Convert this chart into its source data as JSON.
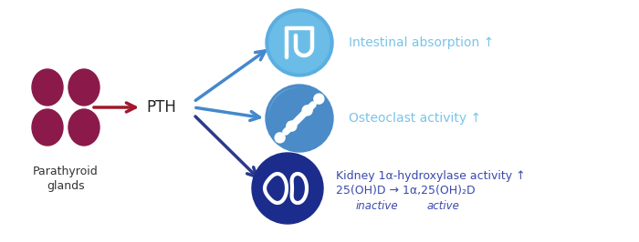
{
  "bg_color": "#ffffff",
  "parathyroid_color": "#8B1A4A",
  "pth_arrow_color": "#A0182A",
  "intestine_circle_grad1": "#7BC8F0",
  "intestine_circle_grad2": "#4A9DD4",
  "bone_circle_color": "#4A7EC0",
  "bone_circle_grad": "#3A6AAA",
  "kidney_circle_color": "#1E2E8C",
  "light_blue_arrow": "#4488CC",
  "dark_blue_arrow": "#2A3A8C",
  "text_color_light_blue": "#7AC4E8",
  "text_color_dark_blue": "#3A4AAC",
  "label_parathyroid": "Parathyroid\nglands",
  "label_pth": "PTH",
  "label_intestinal": "Intestinal absorption ↑",
  "label_osteoclast": "Osteoclast activity ↑",
  "label_kidney": "Kidney 1α-hydroxylase activity ↑",
  "label_reaction": "25(OH)D → 1α,25(OH)₂D",
  "label_inactive": "inactive",
  "label_active": "active",
  "figsize": [
    7.0,
    2.66
  ],
  "dpi": 100
}
